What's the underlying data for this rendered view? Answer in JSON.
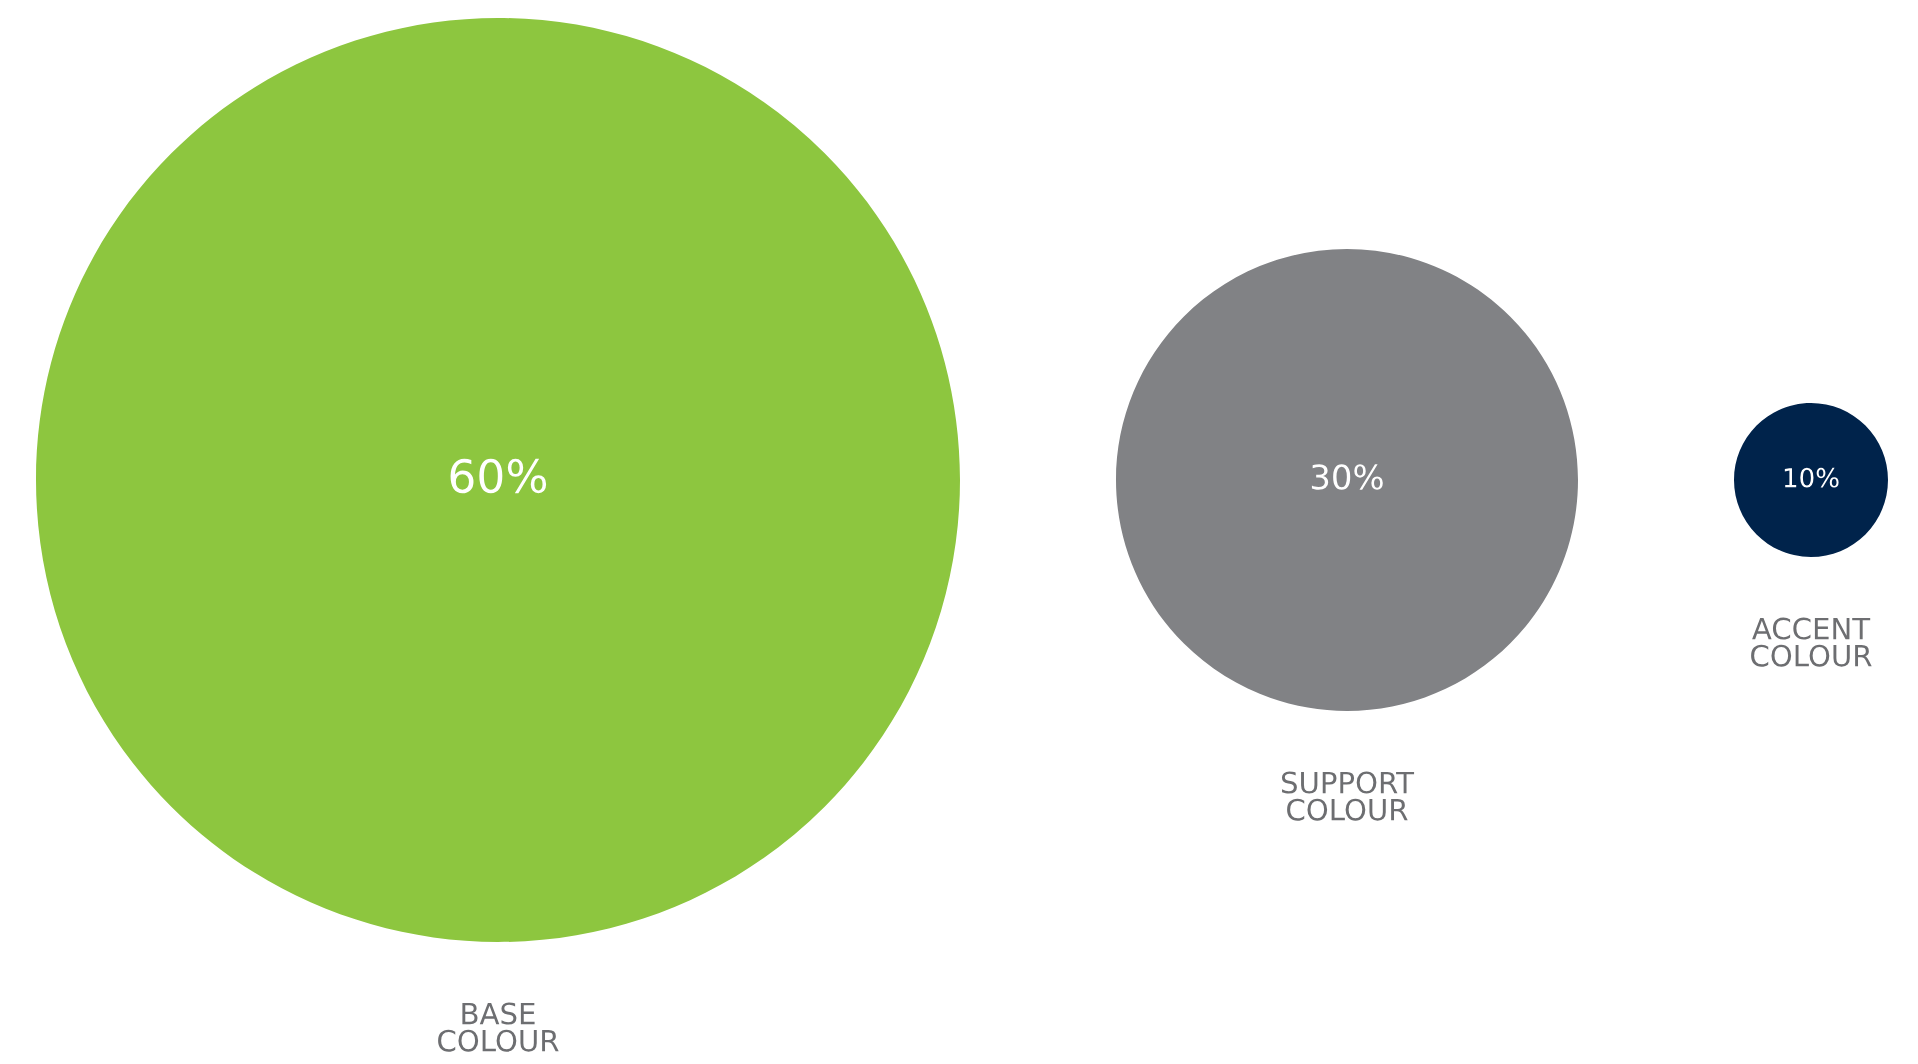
{
  "chart_data": {
    "type": "other",
    "categories": [
      "BASE\nCOLOUR",
      "SUPPORT\nCOLOUR",
      "ACCENT\nCOLOUR"
    ],
    "values": [
      60,
      30,
      10
    ],
    "value_labels": [
      "60%",
      "30%",
      "10%"
    ],
    "colors": [
      "#8dc63f",
      "#818285",
      "#00234b"
    ]
  }
}
